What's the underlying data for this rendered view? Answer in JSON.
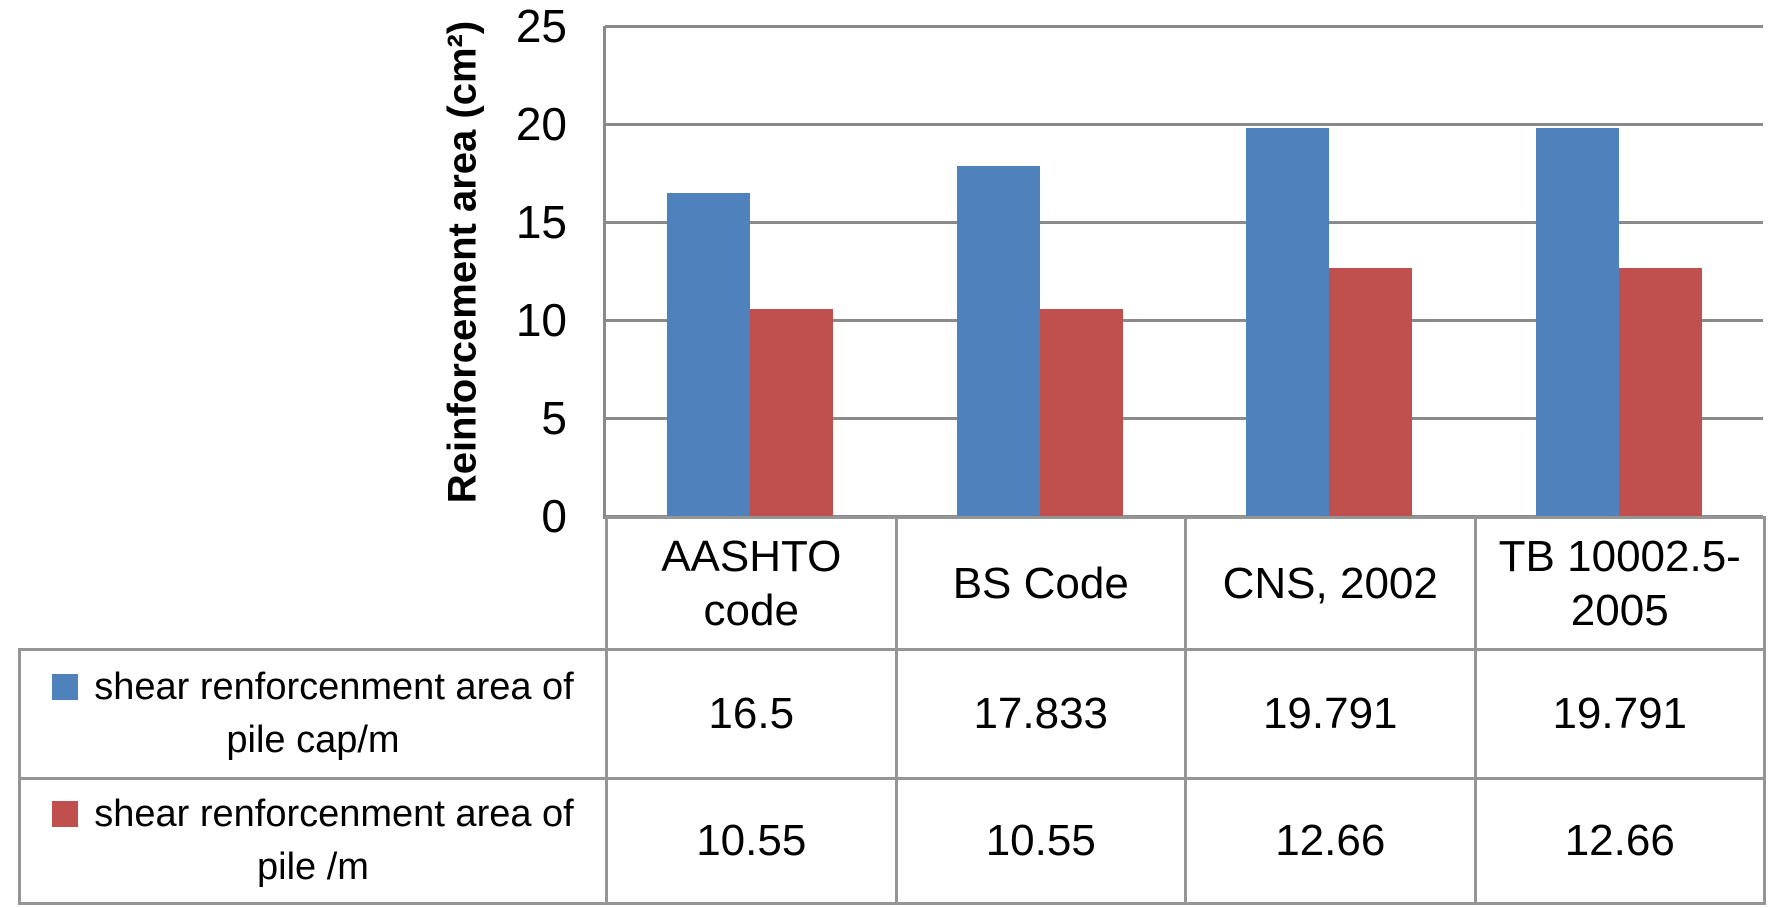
{
  "chart_data": {
    "type": "bar",
    "title": "",
    "categories": [
      "AASHTO code",
      "BS Code",
      "CNS, 2002",
      "TB 10002.5-2005"
    ],
    "series": [
      {
        "name": "shear renforcenment area of pile cap/m",
        "color": "#4F81BD",
        "values": [
          16.5,
          17.833,
          19.791,
          19.791
        ]
      },
      {
        "name": "shear renforcenment area of pile /m",
        "color": "#C0504D",
        "values": [
          10.55,
          10.55,
          12.66,
          12.66
        ]
      }
    ],
    "xlabel": "",
    "ylabel": "Reinforcement area (cm²)",
    "ylim": [
      0,
      25
    ],
    "ytick_step": 5,
    "grid": true,
    "legend_position": "left-of-data-table"
  },
  "axis": {
    "title": "Reinforcement area (cm²)",
    "ticks": [
      "25",
      "20",
      "15",
      "10",
      "5",
      "0"
    ]
  },
  "table": {
    "category_header_lines": [
      [
        "AASHTO",
        "code"
      ],
      [
        "BS Code"
      ],
      [
        "CNS, 2002"
      ],
      [
        "TB 10002.5-",
        "2005"
      ]
    ],
    "rows": [
      {
        "legend_lines": [
          "shear renforcenment area of",
          "pile cap/m"
        ],
        "swatch_color": "#4F81BD",
        "values": [
          "16.5",
          "17.833",
          "19.791",
          "19.791"
        ]
      },
      {
        "legend_lines": [
          "shear renforcenment area of",
          "pile /m"
        ],
        "swatch_color": "#C0504D",
        "values": [
          "10.55",
          "10.55",
          "12.66",
          "12.66"
        ]
      }
    ]
  },
  "colors": {
    "series_blue": "#4F81BD",
    "series_red": "#C0504D",
    "gridline": "#8a8a8a",
    "table_border": "#959595"
  }
}
